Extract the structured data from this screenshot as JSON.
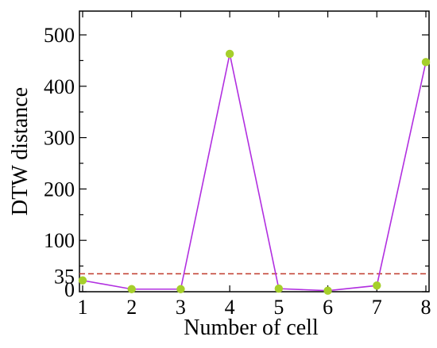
{
  "chart_data": {
    "type": "line",
    "title": "",
    "xlabel": "Number of cell",
    "ylabel": "DTW distance",
    "x": [
      1,
      2,
      3,
      4,
      5,
      6,
      7,
      8
    ],
    "series": [
      {
        "values": [
          22,
          5,
          5,
          463,
          6,
          2,
          12,
          447
        ]
      }
    ],
    "xlim": [
      1,
      8
    ],
    "ylim": [
      0,
      500
    ],
    "xticks": [
      1,
      2,
      3,
      4,
      5,
      6,
      7,
      8
    ],
    "yticks": [
      0,
      35,
      100,
      200,
      300,
      400,
      500
    ],
    "ytick_labels": [
      "0",
      "35",
      "100",
      "200",
      "300",
      "400",
      "500"
    ],
    "threshold": {
      "value": 35,
      "style": "dashed",
      "color": "#c0392b"
    },
    "line_color": "#b12fe0",
    "marker_color": "#a6cf2b",
    "grid": false,
    "legend": "none"
  }
}
